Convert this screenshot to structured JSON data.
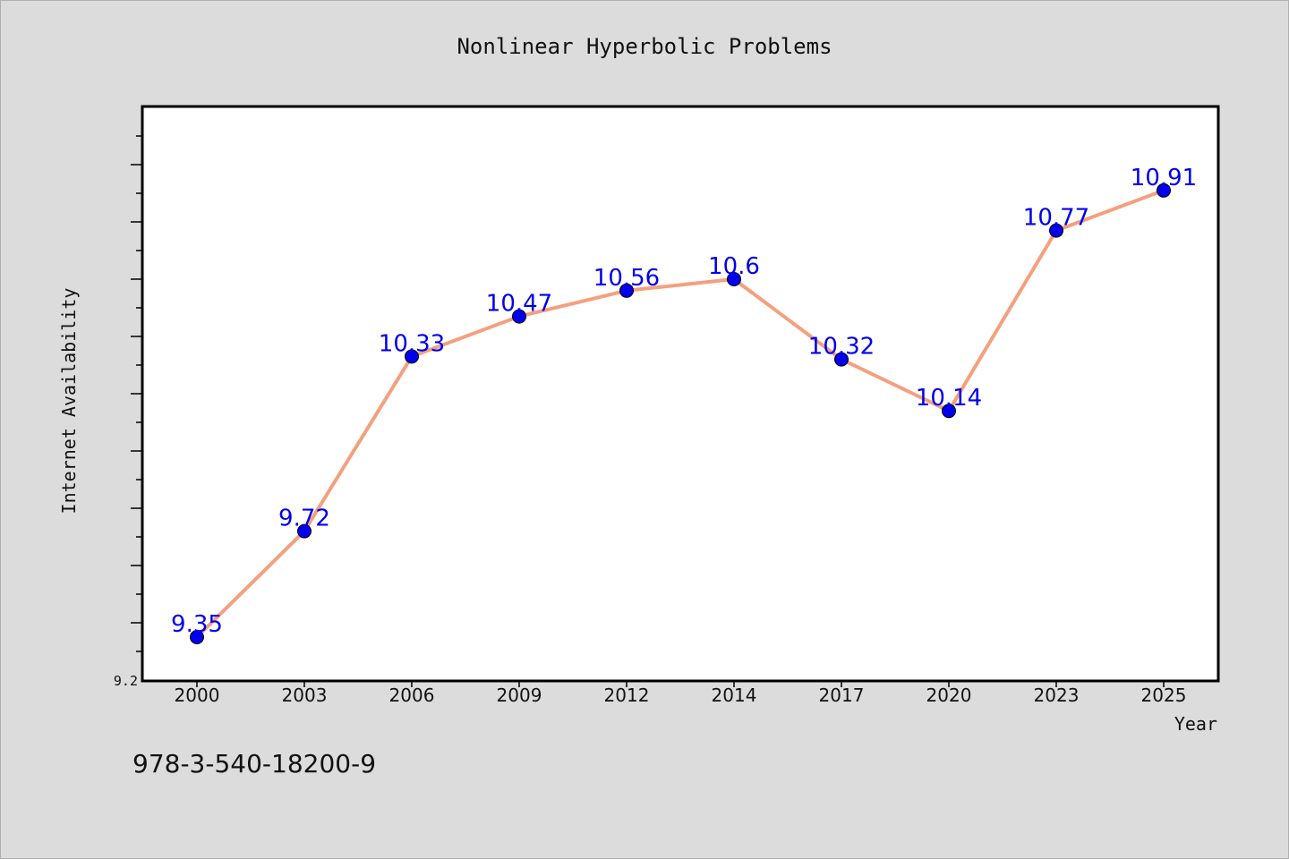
{
  "chart_data": {
    "type": "line",
    "title": "Nonlinear Hyperbolic Problems",
    "xlabel": "Year",
    "ylabel": "Internet Availability",
    "categories": [
      "2000",
      "2003",
      "2006",
      "2009",
      "2012",
      "2014",
      "2017",
      "2020",
      "2023",
      "2025"
    ],
    "series": [
      {
        "values": [
          9.35,
          9.72,
          10.33,
          10.47,
          10.56,
          10.6,
          10.32,
          10.14,
          10.77,
          10.91
        ],
        "data_labels": [
          "9.35",
          "9.72",
          "10.33",
          "10.47",
          "10.56",
          "10.6",
          "10.32",
          "10.14",
          "10.77",
          "10.91"
        ]
      }
    ],
    "ylim": [
      9.2,
      11.2
    ],
    "y_tick_labels": [
      "9.2"
    ],
    "grid": false,
    "line_color": "#f4a07f",
    "marker_color": "#0000ee",
    "label_color": "#0000ee"
  },
  "footer": {
    "text": "978-3-540-18200-9"
  }
}
